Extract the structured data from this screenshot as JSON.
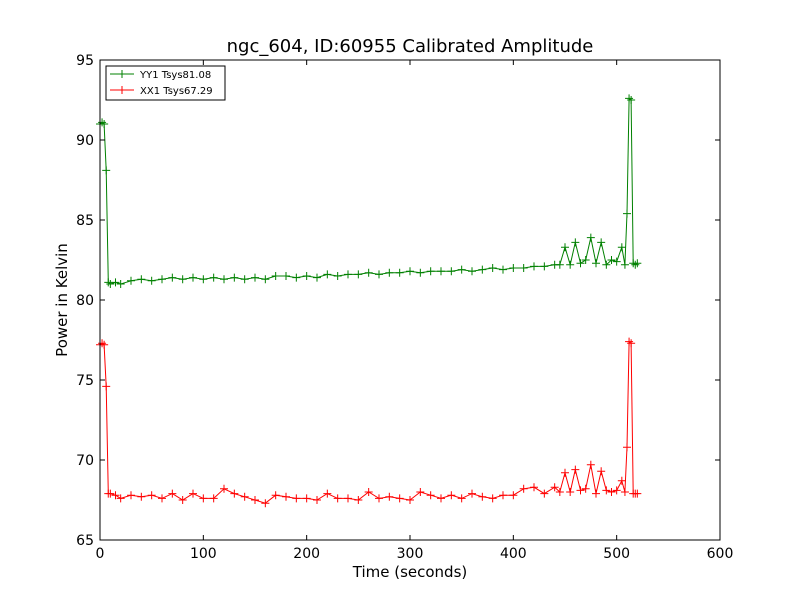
{
  "chart_data": {
    "type": "line",
    "title": "ngc_604, ID:60955 Calibrated Amplitude",
    "xlabel": "Time (seconds)",
    "ylabel": "Power in Kelvin",
    "xlim": [
      0,
      600
    ],
    "ylim": [
      65,
      95
    ],
    "xticks": [
      "0",
      "100",
      "200",
      "300",
      "400",
      "500",
      "600"
    ],
    "yticks": [
      "65",
      "70",
      "75",
      "80",
      "85",
      "90",
      "95"
    ],
    "grid": false,
    "legend_position": "top-left",
    "series": [
      {
        "name": "YY1 Tsys81.08",
        "color": "#008000",
        "marker": "+",
        "x": [
          0,
          2,
          4,
          6,
          8,
          10,
          15,
          20,
          30,
          40,
          50,
          60,
          70,
          80,
          90,
          100,
          110,
          120,
          130,
          140,
          150,
          160,
          170,
          180,
          190,
          200,
          210,
          220,
          230,
          240,
          250,
          260,
          270,
          280,
          290,
          300,
          310,
          320,
          330,
          340,
          350,
          360,
          370,
          380,
          390,
          400,
          410,
          420,
          430,
          440,
          445,
          450,
          455,
          460,
          465,
          470,
          475,
          480,
          485,
          490,
          495,
          500,
          505,
          508,
          510,
          512,
          514,
          516,
          518,
          520
        ],
        "y": [
          91.0,
          91.1,
          91.0,
          88.1,
          81.1,
          81.0,
          81.1,
          81.0,
          81.2,
          81.3,
          81.2,
          81.3,
          81.4,
          81.3,
          81.4,
          81.3,
          81.4,
          81.3,
          81.4,
          81.3,
          81.4,
          81.3,
          81.5,
          81.5,
          81.4,
          81.5,
          81.4,
          81.6,
          81.5,
          81.6,
          81.6,
          81.7,
          81.6,
          81.7,
          81.7,
          81.8,
          81.7,
          81.8,
          81.8,
          81.8,
          81.9,
          81.8,
          81.9,
          82.0,
          81.9,
          82.0,
          82.0,
          82.1,
          82.1,
          82.2,
          82.2,
          83.3,
          82.2,
          83.6,
          82.3,
          82.5,
          83.9,
          82.3,
          83.6,
          82.2,
          82.5,
          82.4,
          83.3,
          82.2,
          85.4,
          92.6,
          92.5,
          82.3,
          82.2,
          82.3
        ]
      },
      {
        "name": "XX1 Tsys67.29",
        "color": "#ff0000",
        "marker": "+",
        "x": [
          0,
          2,
          4,
          6,
          8,
          10,
          15,
          20,
          30,
          40,
          50,
          60,
          70,
          80,
          90,
          100,
          110,
          120,
          130,
          140,
          150,
          160,
          170,
          180,
          190,
          200,
          210,
          220,
          230,
          240,
          250,
          260,
          270,
          280,
          290,
          300,
          310,
          320,
          330,
          340,
          350,
          360,
          370,
          380,
          390,
          400,
          410,
          420,
          430,
          440,
          445,
          450,
          455,
          460,
          465,
          470,
          475,
          480,
          485,
          490,
          495,
          500,
          505,
          508,
          510,
          512,
          514,
          516,
          518,
          520
        ],
        "y": [
          77.2,
          77.3,
          77.2,
          74.6,
          67.9,
          67.9,
          67.8,
          67.6,
          67.8,
          67.7,
          67.8,
          67.6,
          67.9,
          67.5,
          67.9,
          67.6,
          67.6,
          68.2,
          67.9,
          67.7,
          67.5,
          67.3,
          67.8,
          67.7,
          67.6,
          67.6,
          67.5,
          67.9,
          67.6,
          67.6,
          67.5,
          68.0,
          67.6,
          67.7,
          67.6,
          67.5,
          68.0,
          67.8,
          67.6,
          67.8,
          67.6,
          67.9,
          67.7,
          67.6,
          67.8,
          67.8,
          68.2,
          68.3,
          67.9,
          68.3,
          68.0,
          69.2,
          68.0,
          69.4,
          68.1,
          68.2,
          69.7,
          67.9,
          69.3,
          68.1,
          68.0,
          68.1,
          68.7,
          68.0,
          70.8,
          77.4,
          77.3,
          67.9,
          67.9,
          67.9
        ]
      }
    ]
  }
}
